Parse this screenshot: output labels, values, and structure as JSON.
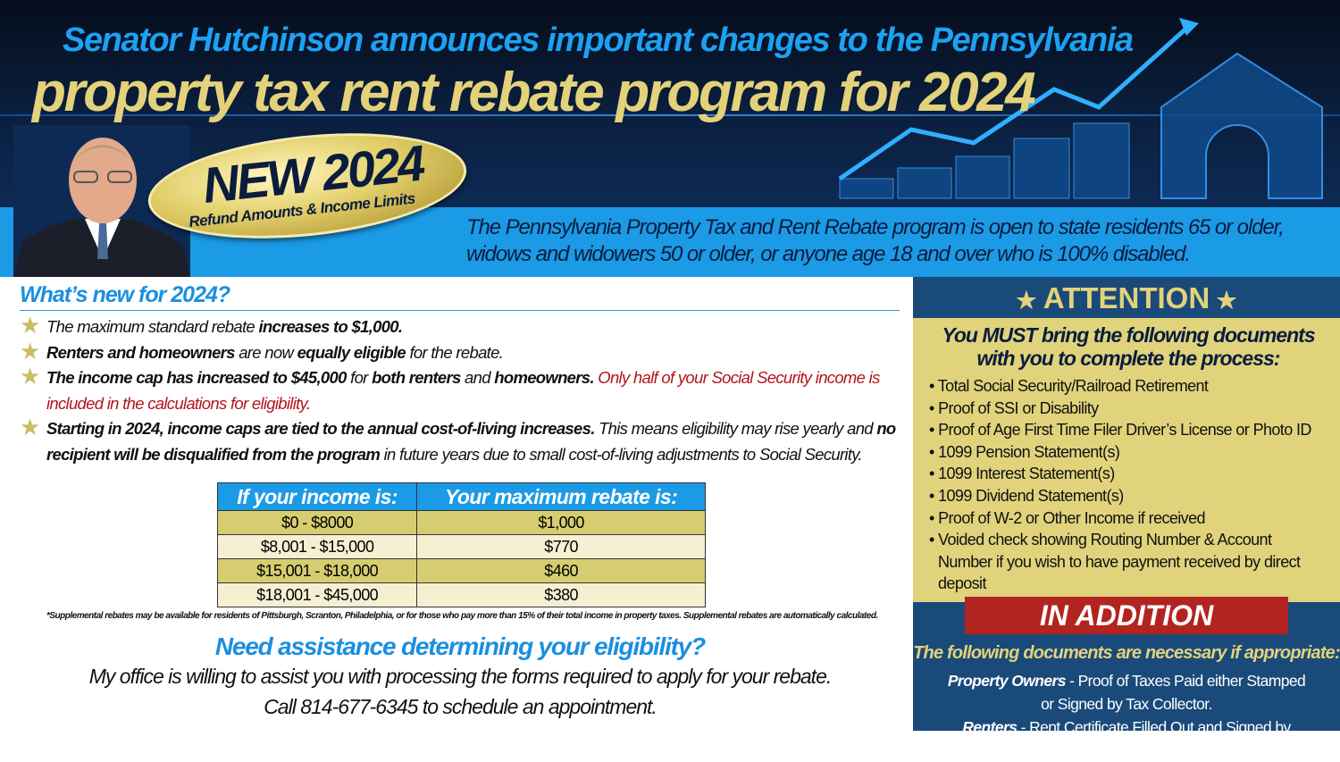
{
  "header": {
    "title_line1": "Senator Hutchinson announces important changes to the Pennsylvania",
    "title_line2": "property tax rent rebate program for 2024"
  },
  "badge": {
    "main": "NEW 2024",
    "sub": "Refund Amounts & Income Limits"
  },
  "intro": "The Pennsylvania Property Tax and Rent Rebate program is open to state residents 65 or older, widows and widowers 50 or older, or anyone age 18 and over who is 100% disabled.",
  "whats_new": {
    "heading": "What’s new for 2024?",
    "bullets": [
      [
        {
          "t": "The maximum standard rebate ",
          "s": ""
        },
        {
          "t": "increases to $1,000.",
          "s": "b"
        }
      ],
      [
        {
          "t": "Renters and homeowners",
          "s": "b"
        },
        {
          "t": " are now ",
          "s": ""
        },
        {
          "t": "equally eligible",
          "s": "b"
        },
        {
          "t": " for the rebate.",
          "s": ""
        }
      ],
      [
        {
          "t": "The income cap has increased to $45,000",
          "s": "b"
        },
        {
          "t": " for ",
          "s": ""
        },
        {
          "t": "both renters",
          "s": "b"
        },
        {
          "t": " and ",
          "s": ""
        },
        {
          "t": "homeowners.",
          "s": "b"
        },
        {
          "t": "  Only half of your Social Security income is included in the calculations for eligibility.",
          "s": "r"
        }
      ],
      [
        {
          "t": "Starting in 2024, income caps are tied to the annual cost-of-living increases.",
          "s": "b"
        },
        {
          "t": "  This means eligibility may rise yearly and ",
          "s": ""
        },
        {
          "t": "no recipient will be disqualified from the program",
          "s": "b"
        },
        {
          "t": " in future years due to small cost-of-living adjustments to Social Security.",
          "s": ""
        }
      ]
    ]
  },
  "table": {
    "headers": [
      "If your income is:",
      "Your maximum rebate is:"
    ],
    "rows": [
      [
        "$0 - $8000",
        "$1,000"
      ],
      [
        "$8,001 - $15,000",
        "$770"
      ],
      [
        "$15,001 - $18,000",
        "$460"
      ],
      [
        "$18,001 - $45,000",
        "$380"
      ]
    ]
  },
  "footnote": "*Supplemental rebates may be available for residents of Pittsburgh, Scranton, Philadelphia, or for those who pay more than 15% of their total income in property taxes.  Supplemental rebates are automatically calculated.",
  "assist": {
    "heading": "Need assistance determining your eligibility?",
    "line1": "My office is willing to assist you with processing the forms required to apply for your rebate.",
    "line2": "Call 814-677-6345 to schedule an appointment."
  },
  "attention": {
    "title": "ATTENTION",
    "must": "You MUST bring the following documents with you to complete the process:",
    "docs": [
      "Total Social Security/Railroad Retirement",
      "Proof of SSI or Disability",
      "Proof of Age First Time Filer Driver’s License or Photo ID",
      "1099 Pension Statement(s)",
      "1099 Interest Statement(s)",
      "1099 Dividend Statement(s)",
      "Proof of W-2 or Other Income if received",
      "Voided check showing Routing Number & Account Number if you wish to have payment received by direct deposit"
    ],
    "in_addition": "IN ADDITION",
    "following": "The following documents are necessary  if appropriate:",
    "owners_label": "Property Owners",
    "owners_text": " - Proof of Taxes Paid either Stamped or Signed by Tax Collector.",
    "renters_label": "Renters",
    "renters_text": " - Rent Certificate Filled Out and Signed by Landlord."
  },
  "colors": {
    "navy": "#0b1c3d",
    "blue": "#1b9ae6",
    "gold": "#e3d27a",
    "red": "#b22420",
    "panel": "#1a4a7a"
  }
}
